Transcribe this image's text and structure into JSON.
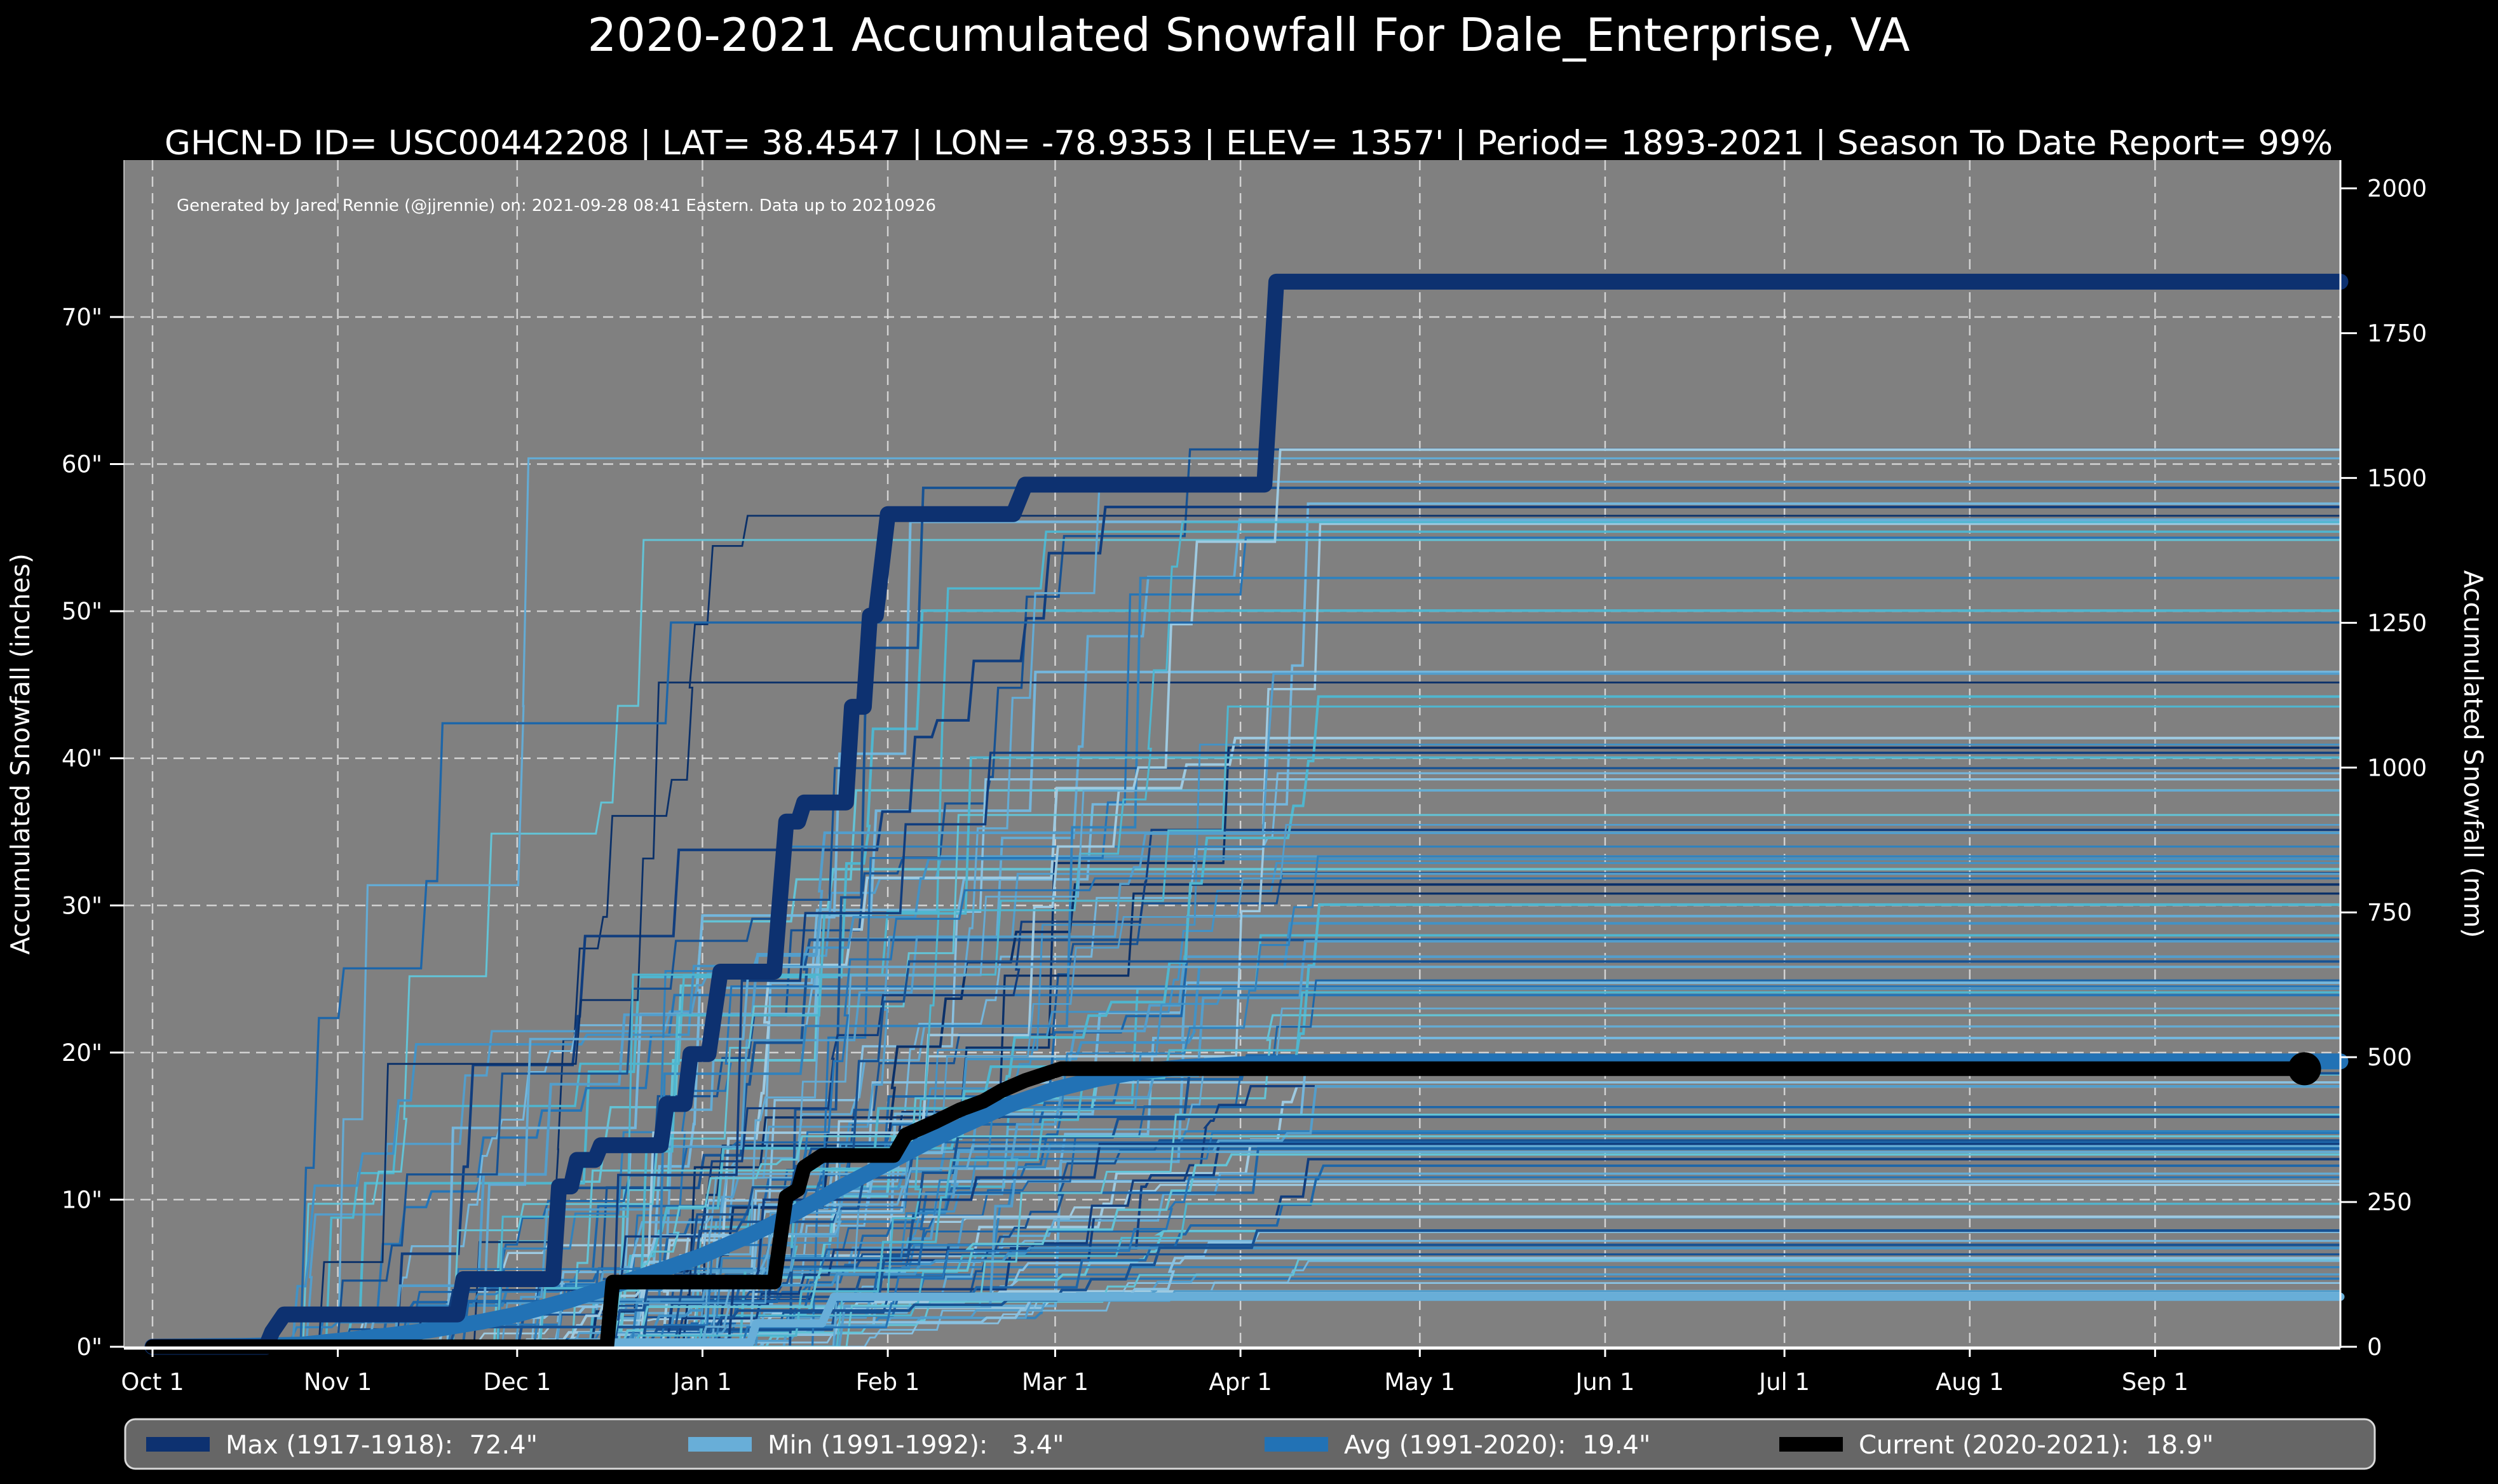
{
  "title": "2020-2021 Accumulated Snowfall For Dale_Enterprise, VA",
  "subtitle": "GHCN-D ID= USC00442208 | LAT= 38.4547 | LON= -78.9353 | ELEV= 1357' | Period= 1893-2021 | Season To Date Report= 99%",
  "annotation": "Generated by Jared Rennie (@jjrennie) on: 2021-09-28 08:41 Eastern. Data up to 20210926",
  "colors": {
    "figure_bg": "#000000",
    "plot_bg": "#808080",
    "grid": "#e0e0e0",
    "spine": "#ffffff",
    "text": "#ffffff",
    "max": "#0d3170",
    "min": "#68aed8",
    "avg": "#2272b5",
    "current": "#000000",
    "legend_bg": "#666666",
    "legend_border": "#d9d9d9"
  },
  "chart_data": {
    "type": "line",
    "title": "2020-2021 Accumulated Snowfall For Dale_Enterprise, VA",
    "x_axis": {
      "tick_labels": [
        "Oct 1",
        "Nov 1",
        "Dec 1",
        "Jan 1",
        "Feb 1",
        "Mar 1",
        "Apr 1",
        "May 1",
        "Jun 1",
        "Jul 1",
        "Aug 1",
        "Sep 1"
      ],
      "tick_days": [
        0,
        31,
        61,
        92,
        123,
        151,
        182,
        212,
        243,
        273,
        304,
        335
      ],
      "range_days": [
        0,
        366
      ]
    },
    "y_left": {
      "label": "Accumulated Snowfall (inches)",
      "tick_labels": [
        "0\"",
        "10\"",
        "20\"",
        "30\"",
        "40\"",
        "50\"",
        "60\"",
        "70\""
      ],
      "tick_values": [
        0,
        10,
        20,
        30,
        40,
        50,
        60,
        70
      ],
      "range": [
        0,
        80.75
      ],
      "grid": true
    },
    "y_right": {
      "label": "Accumulated Snowfall (mm)",
      "tick_labels": [
        "0",
        "250",
        "500",
        "750",
        "1000",
        "1250",
        "1500",
        "1750",
        "2000"
      ],
      "tick_values": [
        0,
        250,
        500,
        750,
        1000,
        1250,
        1500,
        1750,
        2000
      ],
      "mm_per_inch": 25.4
    },
    "series": [
      {
        "name": "Max (1917-1918)",
        "legend_label": "Max (1917-1918):  72.4\"",
        "final_inches": 72.4,
        "color_key": "max",
        "width": 25,
        "style": "steps",
        "points": [
          [
            0,
            0
          ],
          [
            19,
            0
          ],
          [
            20,
            1.0
          ],
          [
            22,
            2.2
          ],
          [
            51,
            2.2
          ],
          [
            52,
            4.6
          ],
          [
            67,
            4.6
          ],
          [
            68,
            10.9
          ],
          [
            70,
            10.9
          ],
          [
            71,
            12.7
          ],
          [
            74,
            12.7
          ],
          [
            75,
            13.7
          ],
          [
            85,
            13.7
          ],
          [
            86,
            16.5
          ],
          [
            89,
            16.5
          ],
          [
            90,
            19.9
          ],
          [
            93,
            19.9
          ],
          [
            95,
            25.5
          ],
          [
            104,
            25.5
          ],
          [
            106,
            35.7
          ],
          [
            108,
            35.7
          ],
          [
            109,
            37.0
          ],
          [
            116,
            37.0
          ],
          [
            117,
            43.5
          ],
          [
            119,
            43.5
          ],
          [
            120,
            49.7
          ],
          [
            121,
            49.7
          ],
          [
            123,
            56.6
          ],
          [
            144,
            56.6
          ],
          [
            146,
            58.6
          ],
          [
            186,
            58.6
          ],
          [
            188,
            72.4
          ],
          [
            366,
            72.4
          ]
        ]
      },
      {
        "name": "Min (1991-1992)",
        "legend_label": "Min (1991-1992):   3.4\"",
        "final_inches": 3.4,
        "color_key": "min",
        "width": 13,
        "style": "steps",
        "points": [
          [
            0,
            0
          ],
          [
            69,
            0
          ],
          [
            70,
            0.3
          ],
          [
            100,
            0.3
          ],
          [
            101,
            1.6
          ],
          [
            112,
            1.6
          ],
          [
            114,
            3.4
          ],
          [
            366,
            3.4
          ]
        ]
      },
      {
        "name": "Avg (1991-2020)",
        "legend_label": "Avg (1991-2020):  19.4\"",
        "final_inches": 19.4,
        "color_key": "avg",
        "width": 25,
        "style": "smooth",
        "points": [
          [
            0,
            0
          ],
          [
            15,
            0.05
          ],
          [
            25,
            0.15
          ],
          [
            31,
            0.4
          ],
          [
            40,
            0.8
          ],
          [
            46,
            1.1
          ],
          [
            55,
            1.7
          ],
          [
            61,
            2.2
          ],
          [
            70,
            3.2
          ],
          [
            76,
            4.0
          ],
          [
            85,
            5.2
          ],
          [
            92,
            6.2
          ],
          [
            100,
            7.6
          ],
          [
            107,
            9.0
          ],
          [
            115,
            10.8
          ],
          [
            123,
            12.5
          ],
          [
            130,
            14.0
          ],
          [
            137,
            15.3
          ],
          [
            143,
            16.4
          ],
          [
            151,
            17.5
          ],
          [
            158,
            18.2
          ],
          [
            165,
            18.7
          ],
          [
            172,
            19.0
          ],
          [
            182,
            19.2
          ],
          [
            196,
            19.35
          ],
          [
            212,
            19.4
          ],
          [
            366,
            19.4
          ]
        ]
      },
      {
        "name": "Current (2020-2021)",
        "legend_label": "Current (2020-2021):  18.9\"",
        "final_inches": 18.9,
        "color_key": "current",
        "width": 23,
        "style": "steps",
        "end_marker_day": 360,
        "end_marker_radius": 26,
        "points": [
          [
            0,
            0
          ],
          [
            76,
            0
          ],
          [
            77,
            4.4
          ],
          [
            104,
            4.4
          ],
          [
            106,
            10.2
          ],
          [
            108,
            10.7
          ],
          [
            109,
            12.2
          ],
          [
            112,
            13.0
          ],
          [
            124,
            13.0
          ],
          [
            126,
            14.4
          ],
          [
            131,
            15.3
          ],
          [
            135,
            16.1
          ],
          [
            139,
            16.7
          ],
          [
            142,
            17.4
          ],
          [
            146,
            18.1
          ],
          [
            152,
            18.9
          ],
          [
            360,
            18.9
          ]
        ]
      }
    ],
    "ensemble": {
      "description": "all seasons 1893-2021 shown as thin blue step lines",
      "count": 122,
      "seed": 20210926,
      "palette": [
        "#0a3069",
        "#103d7e",
        "#175293",
        "#1d66a9",
        "#2575b7",
        "#3182bd",
        "#4292c6",
        "#539ecc",
        "#64abd4",
        "#74b6dc",
        "#89c1e1",
        "#9ecae1"
      ],
      "teal_palette": [
        "#4fb6cf",
        "#63c3d6"
      ],
      "teal_chance": 0.12,
      "width_range": [
        2.8,
        4.2
      ],
      "total_range_inches": [
        3.6,
        61
      ],
      "start_day_range": [
        18,
        98
      ],
      "end_day_max": 196
    },
    "legend_position": "bottom"
  },
  "legend": {
    "items": [
      {
        "label": "Max (1917-1918):  72.4\""
      },
      {
        "label": "Min (1991-1992):   3.4\""
      },
      {
        "label": "Avg (1991-2020):  19.4\""
      },
      {
        "label": "Current (2020-2021):  18.9\""
      }
    ]
  }
}
